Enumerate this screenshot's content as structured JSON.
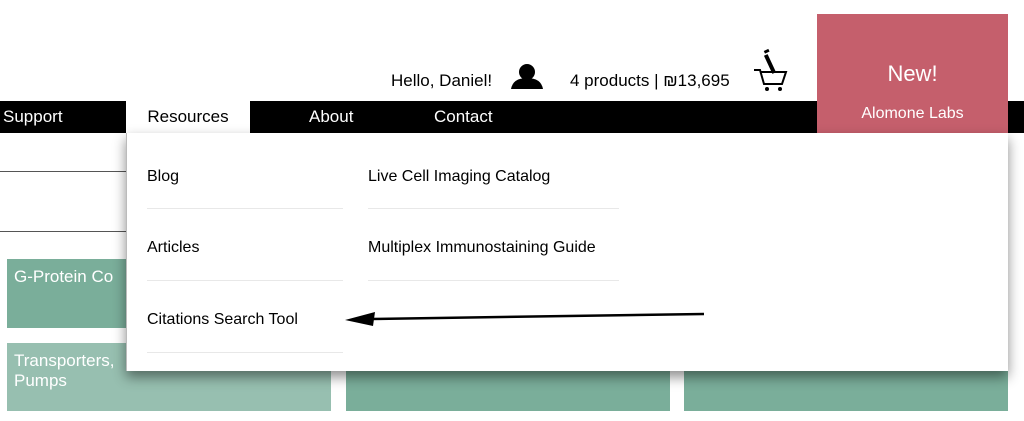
{
  "header": {
    "greeting": "Hello, Daniel!",
    "cart_summary": "4 products | ₪13,695"
  },
  "nav": {
    "items": [
      "Support",
      "Resources",
      "About",
      "Contact"
    ],
    "active": "Resources"
  },
  "promo": {
    "title": "New!",
    "subtitle": "Alomone Labs",
    "color": "#c55f6c"
  },
  "dropdown": {
    "col1": [
      "Blog",
      "Articles",
      "Citations Search Tool"
    ],
    "col2": [
      "Live Cell Imaging Catalog",
      "Multiplex Immunostaining Guide"
    ]
  },
  "tiles": [
    {
      "label": "G-Protein Co"
    },
    {
      "label": "Transporters,\nPumps"
    }
  ],
  "colors": {
    "tile": "#7aae9a",
    "tile_light": "#97bfb0"
  }
}
